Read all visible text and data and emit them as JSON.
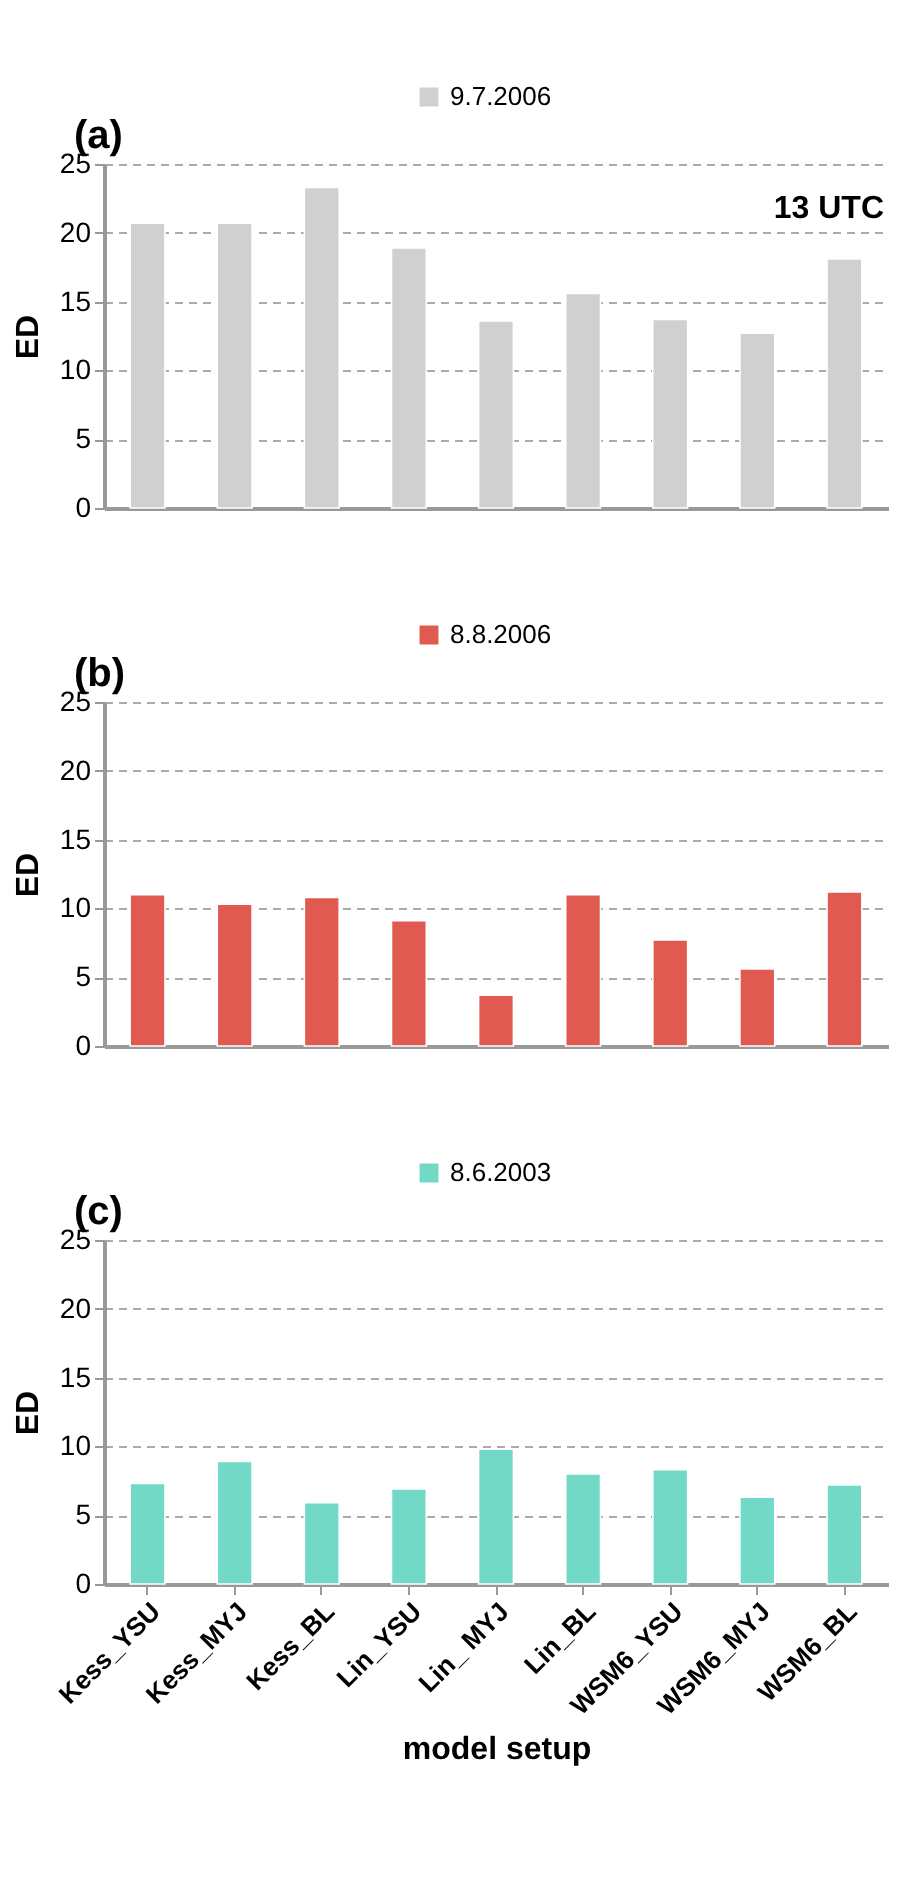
{
  "chart_data": [
    {
      "type": "bar",
      "title": "(a)",
      "ylabel": "ED",
      "categories": [
        null,
        null,
        null,
        null,
        null,
        null,
        null,
        null,
        null
      ],
      "series": [
        {
          "name": "9.7.2006",
          "color": "#d0d0d0",
          "values": [
            20.7,
            20.7,
            23.3,
            18.9,
            13.6,
            15.6,
            13.7,
            12.7,
            18.1
          ]
        }
      ],
      "ylim": [
        0,
        25
      ],
      "yticks": [
        0,
        5,
        10,
        15,
        20,
        25
      ],
      "grid": "y",
      "legend": "top",
      "tick_labels": "y",
      "annotations": [
        "13 UTC"
      ]
    },
    {
      "type": "bar",
      "title": "(b)",
      "ylabel": "ED",
      "categories": [
        null,
        null,
        null,
        null,
        null,
        null,
        null,
        null,
        null
      ],
      "series": [
        {
          "name": "8.8.2006",
          "color": "#e05a52",
          "values": [
            11.0,
            10.3,
            10.8,
            9.1,
            3.7,
            11.0,
            7.7,
            5.6,
            11.2
          ]
        }
      ],
      "ylim": [
        0,
        25
      ],
      "yticks": [
        0,
        5,
        10,
        15,
        20,
        25
      ],
      "grid": "y",
      "legend": "top",
      "tick_labels": "y"
    },
    {
      "type": "bar",
      "title": "(c)",
      "xlabel": "model setup",
      "ylabel": "ED",
      "categories": [
        "Kess_YSU",
        "Kess_MYJ",
        "Kess_BL",
        "Lin_YSU",
        "Lin_ MYJ",
        "Lin_BL",
        "WSM6_YSU",
        "WSM6_MYJ",
        "WSM6_BL"
      ],
      "series": [
        {
          "name": "8.6.2003",
          "color": "#72d9c6",
          "values": [
            7.3,
            8.9,
            5.9,
            6.9,
            9.8,
            8.0,
            8.3,
            6.3,
            7.2
          ]
        }
      ],
      "ylim": [
        0,
        25
      ],
      "yticks": [
        0,
        5,
        10,
        15,
        20,
        25
      ],
      "grid": "y",
      "legend": "top"
    }
  ]
}
